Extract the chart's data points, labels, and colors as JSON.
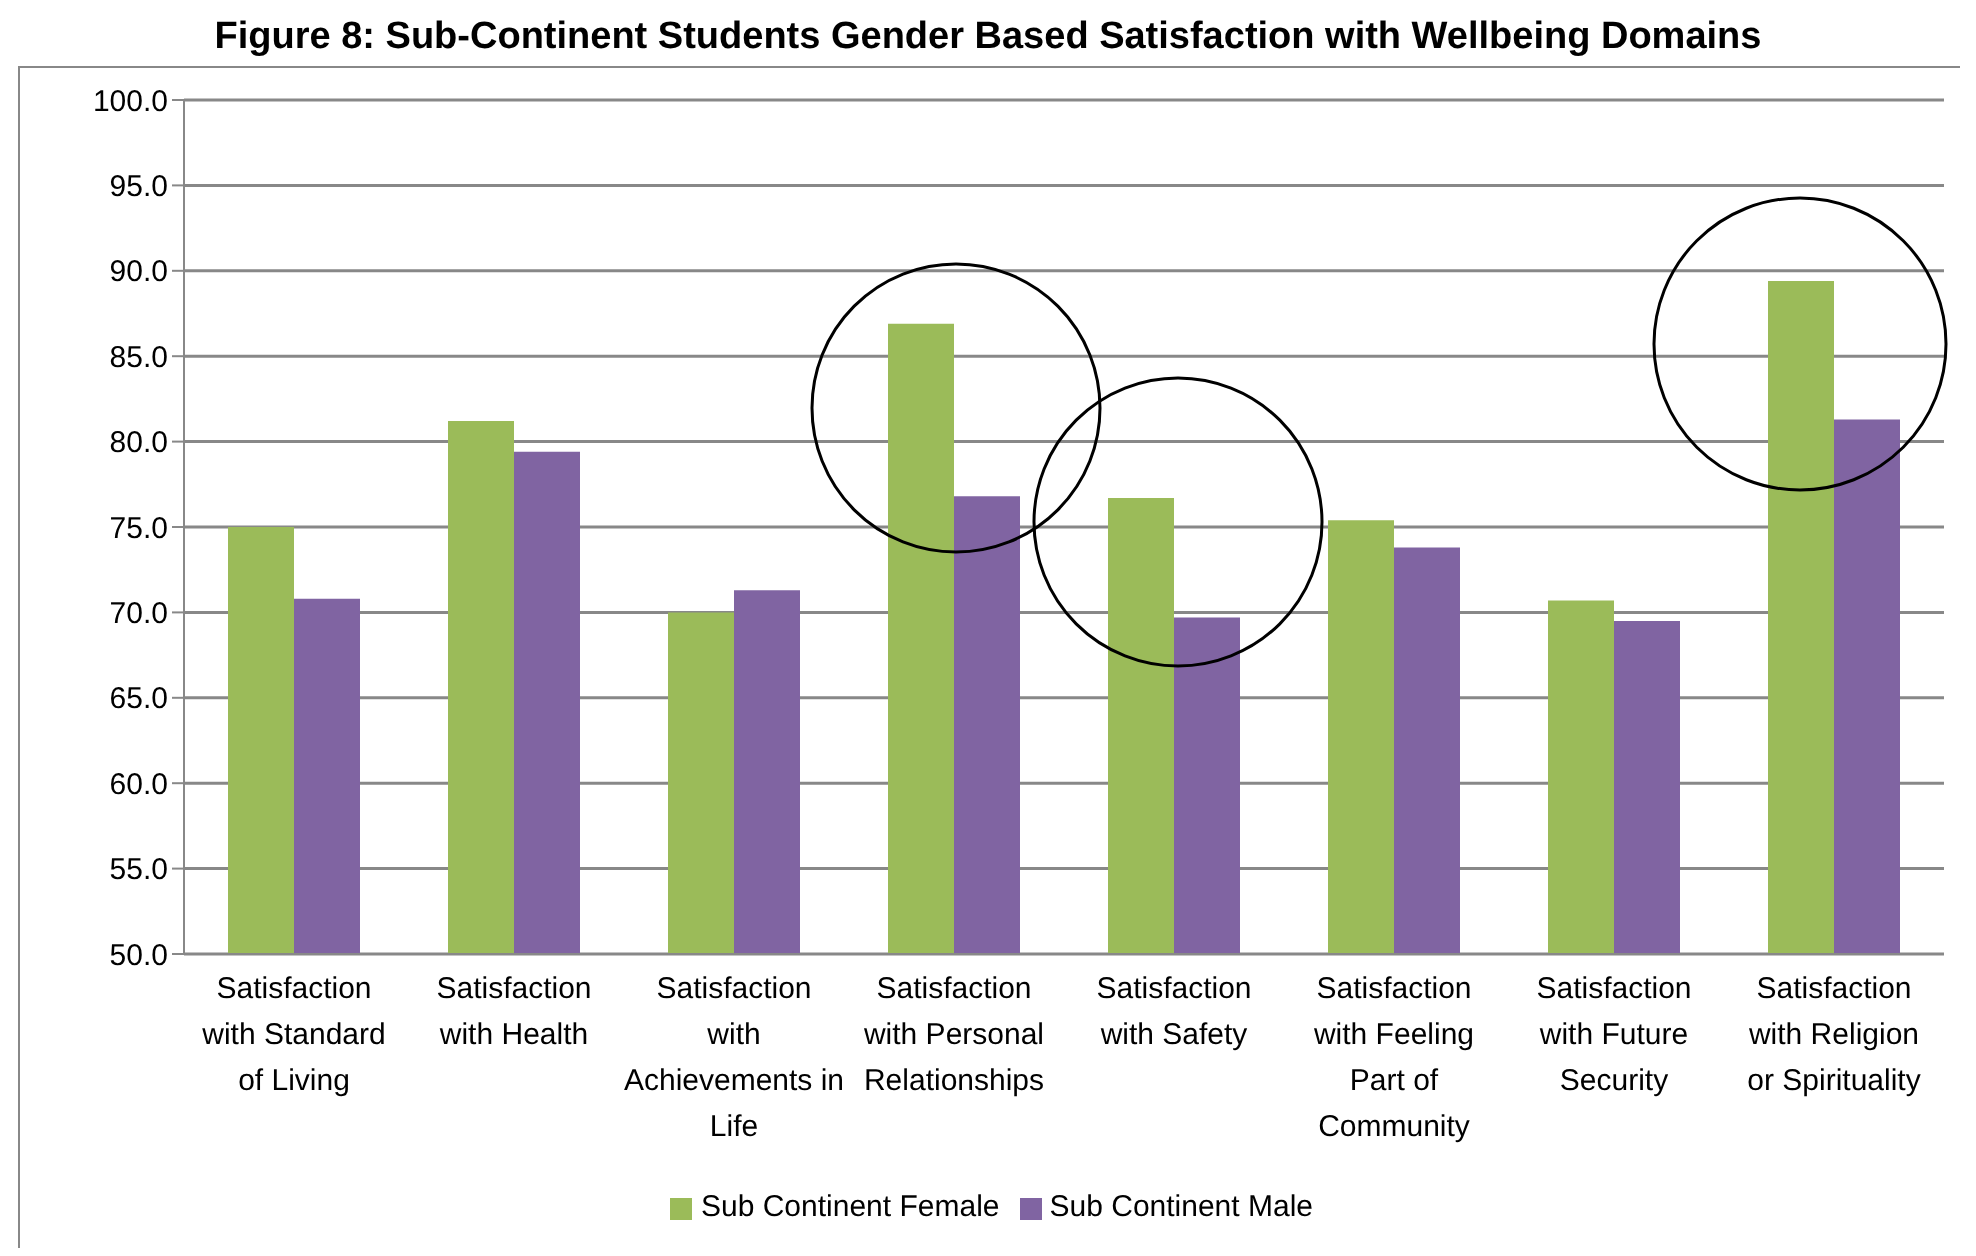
{
  "chart_data": {
    "type": "bar",
    "title": "Figure 8: Sub-Continent Students Gender Based Satisfaction with Wellbeing Domains",
    "categories": [
      "Satisfaction with Standard of Living",
      "Satisfaction with Health",
      "Satisfaction with Achievements in Life",
      "Satisfaction with Personal Relationships",
      "Satisfaction with Safety",
      "Satisfaction with Feeling Part of Community",
      "Satisfaction with Future Security",
      "Satisfaction with Religion or Spirituality"
    ],
    "series": [
      {
        "name": "Sub Continent Female",
        "color": "#9bbb59",
        "values": [
          75.0,
          81.2,
          70.0,
          86.9,
          76.7,
          75.4,
          70.7,
          89.4
        ]
      },
      {
        "name": "Sub Continent Male",
        "color": "#8064a2",
        "values": [
          70.8,
          79.4,
          71.3,
          76.8,
          69.7,
          73.8,
          69.5,
          81.3
        ]
      }
    ],
    "ylim": [
      50,
      100
    ],
    "yticks": [
      {
        "value": 50,
        "label": "50.0"
      },
      {
        "value": 55,
        "label": "55.0"
      },
      {
        "value": 60,
        "label": "60.0"
      },
      {
        "value": 65,
        "label": "65.0"
      },
      {
        "value": 70,
        "label": "70.0"
      },
      {
        "value": 75,
        "label": "75.0"
      },
      {
        "value": 80,
        "label": "80.0"
      },
      {
        "value": 85,
        "label": "85.0"
      },
      {
        "value": 90,
        "label": "90.0"
      },
      {
        "value": 95,
        "label": "95.0"
      },
      {
        "value": 100,
        "label": "100.0"
      }
    ],
    "grid": "y",
    "legend": "bottom"
  }
}
